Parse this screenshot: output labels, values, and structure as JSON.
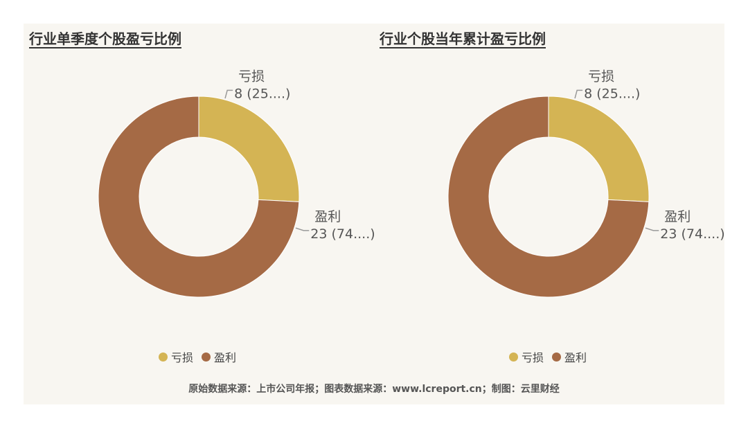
{
  "chart_data": [
    {
      "type": "pie",
      "title": "行业单季度个股盈亏比例",
      "categories": [
        "亏损",
        "盈利"
      ],
      "values": [
        8,
        23
      ],
      "labels": [
        "8 (25....)",
        "23 (74....)"
      ],
      "colors": [
        "#d4b454",
        "#a56a45"
      ],
      "legend": "bottom"
    },
    {
      "type": "pie",
      "title": "行业个股当年累计盈亏比例",
      "categories": [
        "亏损",
        "盈利"
      ],
      "values": [
        8,
        23
      ],
      "labels": [
        "8 (25....)",
        "23 (74....)"
      ],
      "colors": [
        "#d4b454",
        "#a56a45"
      ],
      "legend": "bottom"
    }
  ],
  "footer": "原始数据来源：上市公司年报；图表数据来源：www.lcreport.cn；制图：云里财经"
}
